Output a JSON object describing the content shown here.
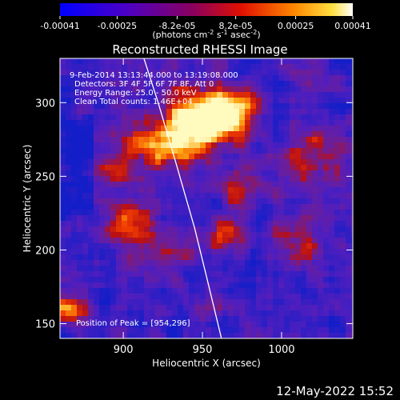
{
  "footer_date": "12-May-2022 15:52",
  "colorbar": {
    "tick_labels": [
      "-0.00041",
      "-0.00025",
      "-8.2e-05",
      "8.2e-05",
      "0.00025",
      "0.00041"
    ],
    "tick_values": [
      -0.00041,
      -0.00025,
      -8.2e-05,
      8.2e-05,
      0.00025,
      0.00041
    ],
    "range": [
      -0.00041,
      0.00041
    ],
    "units_main": "(photons cm",
    "units_exp1": "-2",
    "units_mid": " s",
    "units_exp2": "-1",
    "units_tail": " asec",
    "units_exp3": "-2",
    "units_close": ")",
    "colors": [
      "#0000ff",
      "#6a00b0",
      "#c00020",
      "#ff5000",
      "#ffd000",
      "#ffffff"
    ]
  },
  "chart_data": {
    "type": "heatmap",
    "title": "Reconstructed RHESSI Image",
    "xlabel": "Heliocentric X (arcsec)",
    "ylabel": "Heliocentric Y (arcsec)",
    "xlim": [
      860,
      1045
    ],
    "ylim": [
      140,
      330
    ],
    "x_ticks": [
      900,
      950,
      1000
    ],
    "y_ticks": [
      150,
      200,
      250,
      300
    ],
    "annotations": [
      "9-Feb-2014 13:13:44.000 to 13:19:08.000",
      "Detectors: 3F 4F 5F 6F 7F 8F, Att 0",
      "Energy Range: 25.0 - 50.0 keV",
      "Clean     Total counts: 1.46E+04"
    ],
    "peak_label": "Position of Peak = [954,296]",
    "peak": [
      954,
      296
    ],
    "limb_curve": [
      [
        913,
        330
      ],
      [
        922,
        300
      ],
      [
        933,
        260
      ],
      [
        945,
        215
      ],
      [
        953,
        180
      ],
      [
        962,
        140
      ]
    ]
  }
}
